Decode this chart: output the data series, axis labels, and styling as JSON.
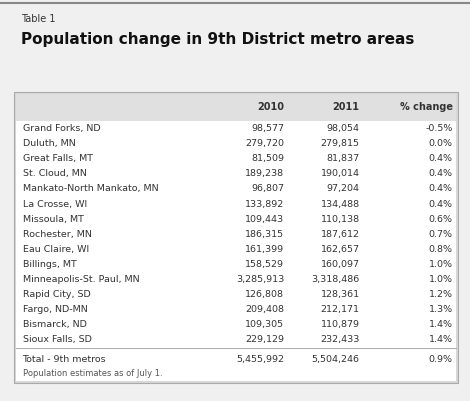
{
  "table_label": "Table 1",
  "title": "Population change in 9th District metro areas",
  "col_headers": [
    "",
    "2010",
    "2011",
    "% change"
  ],
  "rows": [
    [
      "Grand Forks, ND",
      "98,577",
      "98,054",
      "-0.5%"
    ],
    [
      "Duluth, MN",
      "279,720",
      "279,815",
      "0.0%"
    ],
    [
      "Great Falls, MT",
      "81,509",
      "81,837",
      "0.4%"
    ],
    [
      "St. Cloud, MN",
      "189,238",
      "190,014",
      "0.4%"
    ],
    [
      "Mankato-North Mankato, MN",
      "96,807",
      "97,204",
      "0.4%"
    ],
    [
      "La Crosse, WI",
      "133,892",
      "134,488",
      "0.4%"
    ],
    [
      "Missoula, MT",
      "109,443",
      "110,138",
      "0.6%"
    ],
    [
      "Rochester, MN",
      "186,315",
      "187,612",
      "0.7%"
    ],
    [
      "Eau Claire, WI",
      "161,399",
      "162,657",
      "0.8%"
    ],
    [
      "Billings, MT",
      "158,529",
      "160,097",
      "1.0%"
    ],
    [
      "Minneapolis-St. Paul, MN",
      "3,285,913",
      "3,318,486",
      "1.0%"
    ],
    [
      "Rapid City, SD",
      "126,808",
      "128,361",
      "1.2%"
    ],
    [
      "Fargo, ND-MN",
      "209,408",
      "212,171",
      "1.3%"
    ],
    [
      "Bismarck, ND",
      "109,305",
      "110,879",
      "1.4%"
    ],
    [
      "Sioux Falls, SD",
      "229,129",
      "232,433",
      "1.4%"
    ]
  ],
  "total_row": [
    "Total - 9th metros",
    "5,455,992",
    "5,504,246",
    "0.9%"
  ],
  "footnote": "Population estimates as of July 1.",
  "fig_bg": "#f0f0f0",
  "table_bg": "#ffffff",
  "header_bg": "#e0e0e0",
  "outer_bg": "#d8d8d8",
  "border_color": "#aaaaaa",
  "text_color": "#333333",
  "label_fontsize": 7.0,
  "title_fontsize": 11.0,
  "header_fontsize": 7.0,
  "data_fontsize": 6.8,
  "footnote_fontsize": 6.0
}
